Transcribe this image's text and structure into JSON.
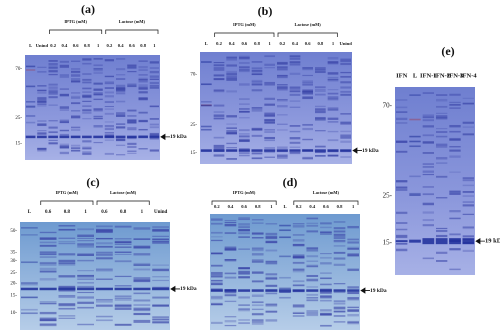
{
  "panels": [
    {
      "label": "(a)",
      "lanes": [
        "L",
        "Unind",
        "0.2",
        "0.4",
        "0.6",
        "0.8",
        "1",
        "0.2",
        "0.4",
        "0.6",
        "0.8",
        "1"
      ],
      "groups": [
        "IPTG (mM)",
        "Lactose (mM)"
      ],
      "markers": [
        "70-",
        "25-",
        "15-"
      ],
      "arrow": "19 kDa"
    },
    {
      "label": "(b)",
      "lanes": [
        "L",
        "0.2",
        "0.4",
        "0.6",
        "0.8",
        "1",
        "0.2",
        "0.4",
        "0.6",
        "0.8",
        "1",
        "Unind"
      ],
      "groups": [
        "IPTG (mM)",
        "Lactose (mM)"
      ],
      "markers": [
        "70-",
        "25-",
        "15-"
      ],
      "arrow": "19 kDa"
    },
    {
      "label": "(c)",
      "lanes": [
        "L",
        "0.6",
        "0.8",
        "1",
        "0.6",
        "0.8",
        "1",
        "Unind"
      ],
      "groups": [
        "IPTG (mM)",
        "Lactose (mM)"
      ],
      "markers": [
        "50-",
        "35-",
        "30-",
        "25-",
        "20-",
        "15-",
        "10-"
      ],
      "arrow": "19 kDa"
    },
    {
      "label": "(d)",
      "lanes": [
        "0.2",
        "0.4",
        "0.6",
        "0.8",
        "1",
        "L",
        "0.2",
        "0.4",
        "0.6",
        "0.8",
        "1"
      ],
      "groups": [
        "IPTG (mM)",
        "Lactose (mM)"
      ],
      "markers": [],
      "arrow": "19 kDa"
    },
    {
      "label": "(e)",
      "lanes": [
        "IFN",
        "L",
        "IFN-1",
        "IFN-2",
        "IFN-3",
        "IFN-4"
      ],
      "groups": [],
      "markers": [
        "70-",
        "25-",
        "15-"
      ],
      "arrow": "19 kDa"
    }
  ]
}
